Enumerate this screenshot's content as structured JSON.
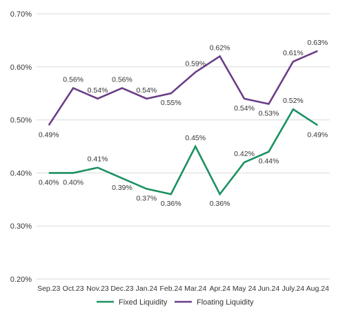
{
  "chart_data": {
    "type": "line",
    "title": "",
    "xlabel": "",
    "ylabel": "",
    "categories": [
      "Sep.23",
      "Oct.23",
      "Nov.23",
      "Dec.23",
      "Jan.24",
      "Feb.24",
      "Mar.24",
      "Apr.24",
      "May 24",
      "Jun.24",
      "July.24",
      "Aug.24"
    ],
    "y_ticks": [
      "0.20%",
      "0.30%",
      "0.40%",
      "0.50%",
      "0.60%",
      "0.70%"
    ],
    "ylim": [
      0.2,
      0.7
    ],
    "grid": "horizontal",
    "legend_position": "bottom",
    "series": [
      {
        "name": "Fixed Liquidity",
        "color": "#1a9160",
        "values": [
          0.4,
          0.4,
          0.41,
          0.39,
          0.37,
          0.36,
          0.45,
          0.36,
          0.42,
          0.44,
          0.52,
          0.49
        ],
        "labels": [
          "0.40%",
          "0.40%",
          "0.41%",
          "0.39%",
          "0.37%",
          "0.36%",
          "0.45%",
          "0.36%",
          "0.42%",
          "0.44%",
          "0.52%",
          "0.49%"
        ]
      },
      {
        "name": "Floating Liquidity",
        "color": "#6a3d87",
        "values": [
          0.49,
          0.56,
          0.54,
          0.56,
          0.54,
          0.55,
          0.59,
          0.62,
          0.54,
          0.53,
          0.61,
          0.63
        ],
        "labels": [
          "0.49%",
          "0.56%",
          "0.54%",
          "0.56%",
          "0.54%",
          "0.55%",
          "0.59%",
          "0.62%",
          "0.54%",
          "0.53%",
          "0.61%",
          "0.63%"
        ]
      }
    ]
  }
}
